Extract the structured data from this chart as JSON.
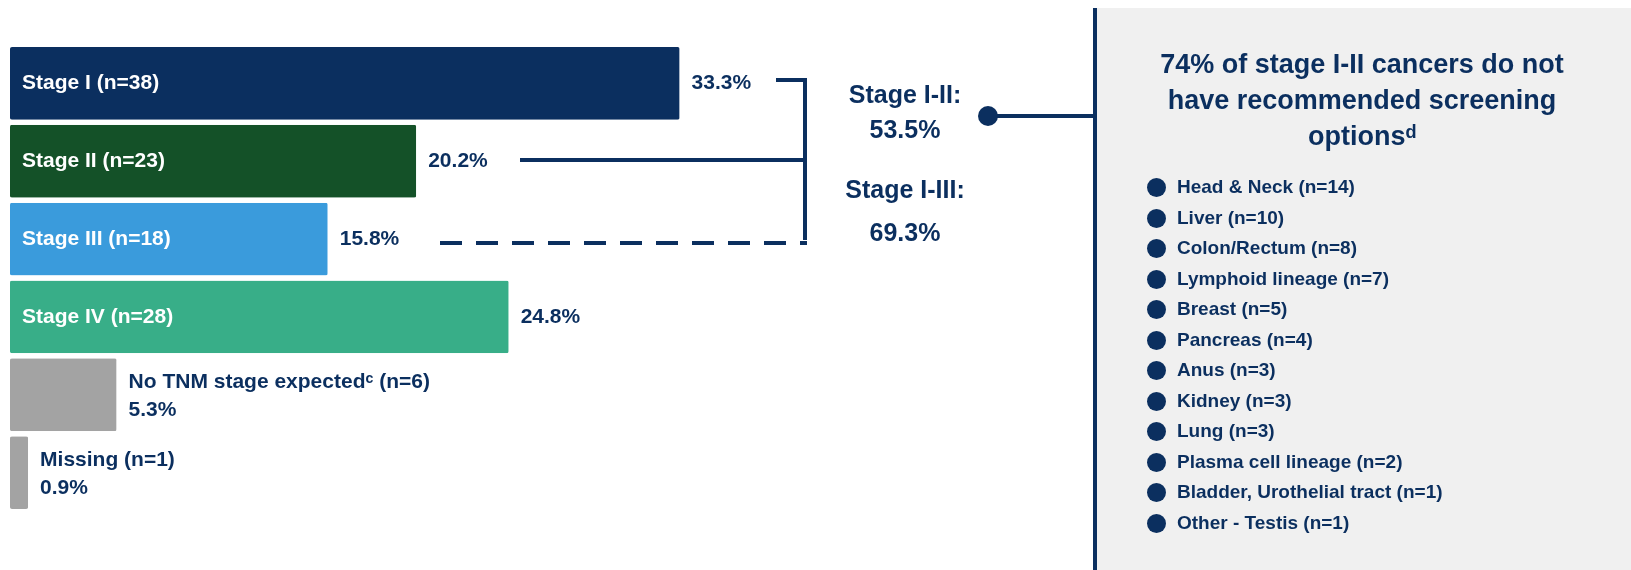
{
  "chart_data": {
    "type": "bar",
    "orientation": "horizontal",
    "categories": [
      "Stage I (n=38)",
      "Stage II (n=23)",
      "Stage III (n=18)",
      "Stage IV (n=28)",
      "No TNM stage expectedᶜ (n=6)",
      "Missing (n=1)"
    ],
    "values": [
      33.3,
      20.2,
      15.8,
      24.8,
      5.3,
      0.9
    ],
    "colors": [
      "#0b2f5f",
      "#145128",
      "#3a9bdc",
      "#38ae88",
      "#a3a3a3",
      "#a3a3a3"
    ],
    "value_labels": [
      "33.3%",
      "20.2%",
      "15.8%",
      "24.8%",
      "5.3%",
      "0.9%"
    ],
    "annotations": [
      "Stage I-II:",
      "53.5%",
      "Stage I-III:",
      "69.3%",
      "74% of stage I-II cancers do not have recommended screening optionsᵈ",
      "Head & Neck (n=14)",
      "Liver (n=10)",
      "Colon/Rectum (n=8)",
      "Lymphoid lineage (n=7)",
      "Breast (n=5)",
      "Pancreas (n=4)",
      "Anus (n=3)",
      "Kidney (n=3)",
      "Lung (n=3)",
      "Plasma cell lineage (n=2)",
      "Bladder, Urothelial tract (n=1)",
      "Other - Testis (n=1)"
    ],
    "grid": false
  }
}
